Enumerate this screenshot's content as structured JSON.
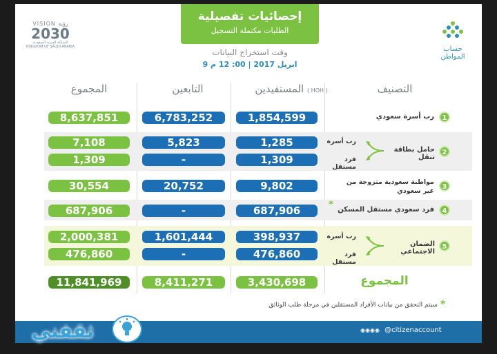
{
  "header": {
    "title": "إحصائيات تفصيلية",
    "subtitle": "الطلبات مكتملة التسجيل",
    "time_label": "وقت استخراج البيانات",
    "time_value": "9  ابريل 2017 | 00: 12 م"
  },
  "vision": {
    "line1": "VISION رؤية",
    "line2": "2030",
    "line3": "المملكة العربية السعودية  KINGDOM OF SAUDI ARABIA"
  },
  "logo": {
    "name": "حساب المواطن",
    "icon": "citizen-account-logo"
  },
  "columns": {
    "category": "التصنيف",
    "beneficiaries": "المستفيدين",
    "beneficiaries_tag": "( HOH )",
    "dependents": "التابعين",
    "total": "المجموع"
  },
  "rows": [
    {
      "num": "1",
      "label": "رب أسرة سعودي",
      "hoh": "1,854,599",
      "dep": "6,783,252",
      "tot": "8,637,851"
    },
    {
      "num": "2",
      "label_main": "حامل بطاقة تنقل",
      "sub": [
        {
          "label": "رب أسرة",
          "hoh": "1,285",
          "dep": "5,823",
          "tot": "7,108"
        },
        {
          "label": "فرد مستقل",
          "hoh": "1,309",
          "dep": "-",
          "tot": "1,309"
        }
      ]
    },
    {
      "num": "3",
      "label": "مواطنة سعودية متزوجة من غير سعودي",
      "hoh": "9,802",
      "dep": "20,752",
      "tot": "30,554"
    },
    {
      "num": "4",
      "label": "فرد سعودي مستقل المسكن",
      "star": "*",
      "hoh": "687,906",
      "dep": "-",
      "tot": "687,906"
    },
    {
      "num": "5",
      "label_main": "الضمان الاجتماعي",
      "sub": [
        {
          "label": "رب أسرة",
          "hoh": "398,937",
          "dep": "1,601,444",
          "tot": "2,000,381"
        },
        {
          "label": "فرد مستقل",
          "hoh": "476,860",
          "dep": "-",
          "tot": "476,860"
        }
      ]
    }
  ],
  "totals": {
    "label": "المجموع",
    "hoh": "3,430,698",
    "dep": "8,411,271",
    "tot": "11,841,969"
  },
  "note": {
    "star": "*",
    "text": "سيتم التحقق من بيانات الأفراد المستقلين في مرحلة طلب الوثائق"
  },
  "footer": {
    "handle": "@citizenaccount",
    "brand": "ثقفني"
  },
  "colors": {
    "green": "#7cc242",
    "blue": "#1c6fb5",
    "dark_green": "#4f8f28",
    "footer_blue": "#1e6ea8"
  }
}
